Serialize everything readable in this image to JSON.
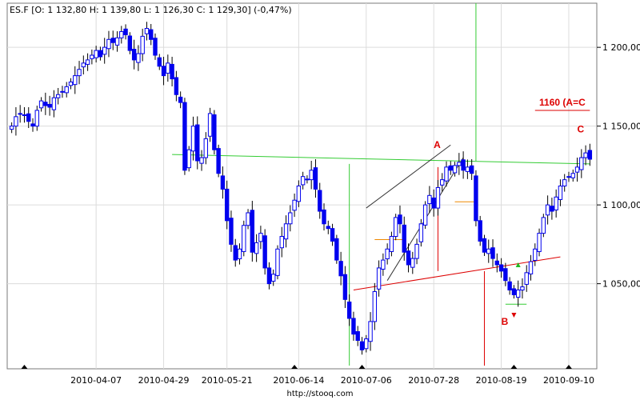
{
  "header": {
    "symbol": "ES.F",
    "ohlc_text": "ES.F [O: 1 132,80  H: 1 139,80  L: 1 126,30  C: 1 129,30] (-0,47%)"
  },
  "footer": {
    "url": "http://stooq.com"
  },
  "colors": {
    "up": "#0000ee",
    "down": "#0000ee",
    "wick": "#000000",
    "green_line": "#33cc33",
    "red_line": "#dd0000",
    "orange_line": "#ee8800",
    "black_line": "#333333",
    "grid": "#dcdcdc"
  },
  "chart_data": {
    "type": "candlestick",
    "title": "",
    "y_ticks": [
      {
        "value": 1050,
        "label": "1 050,00"
      },
      {
        "value": 1100,
        "label": "1 100,00"
      },
      {
        "value": 1150,
        "label": "1 150,00"
      },
      {
        "value": 1200,
        "label": "1 200,00"
      }
    ],
    "ylim": [
      996,
      1228
    ],
    "x_ticks": [
      {
        "index": 20,
        "label": "2010-04-07"
      },
      {
        "index": 36,
        "label": "2010-04-29"
      },
      {
        "index": 51,
        "label": "2010-05-21"
      },
      {
        "index": 68,
        "label": "2010-06-14"
      },
      {
        "index": 84,
        "label": "2010-07-06"
      },
      {
        "index": 100,
        "label": "2010-07-28"
      },
      {
        "index": 116,
        "label": "2010-08-19"
      },
      {
        "index": 132,
        "label": "2010-09-10"
      }
    ],
    "x_markers": [
      3,
      67,
      83,
      119,
      132
    ],
    "last_index": 137,
    "closes": [
      1150,
      1156,
      1158,
      1157,
      1153,
      1150,
      1160,
      1166,
      1163,
      1162,
      1168,
      1170,
      1172,
      1175,
      1178,
      1182,
      1186,
      1190,
      1192,
      1195,
      1198,
      1194,
      1200,
      1205,
      1203,
      1206,
      1210,
      1208,
      1198,
      1192,
      1196,
      1207,
      1212,
      1205,
      1195,
      1188,
      1182,
      1190,
      1180,
      1170,
      1165,
      1122,
      1135,
      1150,
      1128,
      1130,
      1142,
      1158,
      1135,
      1120,
      1110,
      1090,
      1075,
      1065,
      1072,
      1087,
      1095,
      1070,
      1076,
      1082,
      1060,
      1050,
      1056,
      1072,
      1080,
      1088,
      1095,
      1103,
      1112,
      1118,
      1116,
      1122,
      1110,
      1096,
      1088,
      1085,
      1077,
      1065,
      1055,
      1040,
      1028,
      1018,
      1014,
      1008,
      1015,
      1026,
      1045,
      1060,
      1065,
      1072,
      1080,
      1092,
      1088,
      1070,
      1062,
      1066,
      1075,
      1088,
      1100,
      1106,
      1098,
      1111,
      1116,
      1124,
      1122,
      1125,
      1127,
      1122,
      1124,
      1120,
      1090,
      1077,
      1070,
      1072,
      1066,
      1062,
      1058,
      1052,
      1046,
      1043,
      1046,
      1048,
      1057,
      1064,
      1072,
      1082,
      1092,
      1100,
      1096,
      1105,
      1112,
      1116,
      1118,
      1120,
      1124,
      1130,
      1133,
      1129
    ],
    "annotations": [
      {
        "text": "A",
        "color": "#dd0000"
      },
      {
        "text": "B",
        "color": "#dd0000"
      },
      {
        "text": "C",
        "color": "#dd0000"
      },
      {
        "text": "1160 (A=C",
        "color": "#dd0000"
      }
    ]
  }
}
